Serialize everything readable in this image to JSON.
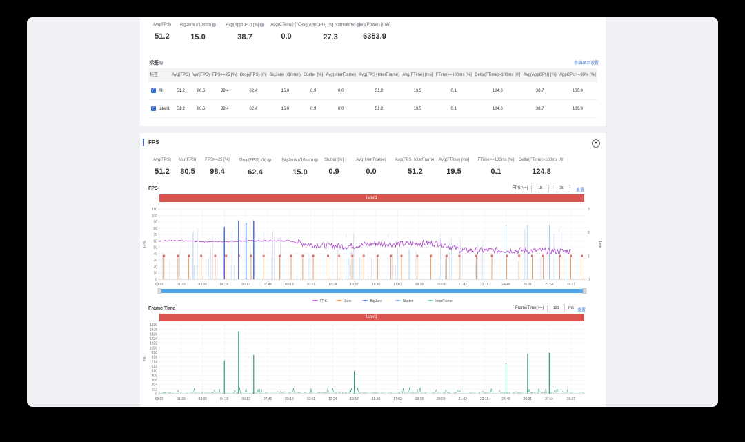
{
  "top_metrics": [
    {
      "label": "Avg(FPS)",
      "value": "51.2",
      "help": false
    },
    {
      "label": "BigJank (/10min)",
      "value": "15.0",
      "help": true
    },
    {
      "label": "Avg(AppCPU) [%]",
      "value": "38.7",
      "help": true
    },
    {
      "label": "Avg(CTemp) [℃]",
      "value": "0.0",
      "help": false
    },
    {
      "label": "Avg(AppCPU) [%] Normalized",
      "value": "27.3",
      "help": true
    },
    {
      "label": "Avg(Power) [mW]",
      "value": "6353.9",
      "help": false
    }
  ],
  "labels_section": {
    "title": "标签",
    "settings_link": "参数显示设置"
  },
  "label_table": {
    "headers": [
      "标签",
      "Avg(FPS)",
      "Var(FPS)",
      "FPS>=25 [%]",
      "Drop(FPS) [/h]",
      "BigJank (/10min)",
      "Stutter [%]",
      "Avg(InterFrame)",
      "Avg(FPS+InterFrame)",
      "Avg(FTime) [ms]",
      "FTime>=100ms [%]",
      "Delta(FTime)>100ms [/h]",
      "Avg(AppCPU) [%]",
      "AppCPU>=60% [%]"
    ],
    "rows": [
      {
        "label": "All",
        "values": [
          "51.2",
          "80.5",
          "98.4",
          "62.4",
          "15.0",
          "0.9",
          "0.0",
          "51.2",
          "19.5",
          "0.1",
          "124.8",
          "38.7",
          "100.0"
        ]
      },
      {
        "label": "label1",
        "values": [
          "51.2",
          "80.5",
          "98.4",
          "62.4",
          "15.0",
          "0.9",
          "0.0",
          "51.2",
          "19.5",
          "0.1",
          "124.8",
          "38.7",
          "100.0"
        ]
      }
    ]
  },
  "fps_section": {
    "title": "FPS",
    "metrics": [
      {
        "label": "Avg(FPS)",
        "value": "51.2",
        "help": false
      },
      {
        "label": "Var(FPS)",
        "value": "80.5",
        "help": false
      },
      {
        "label": "FPS>=25 [%]",
        "value": "98.4",
        "help": false
      },
      {
        "label": "Drop(FPS) [/h]",
        "value": "62.4",
        "help": true
      },
      {
        "label": "BigJank (/10min)",
        "value": "15.0",
        "help": true
      },
      {
        "label": "Stutter [%]",
        "value": "0.9",
        "help": false
      },
      {
        "label": "Avg(InterFrame)",
        "value": "0.0",
        "help": false
      },
      {
        "label": "Avg(FPS+InterFrame)",
        "value": "51.2",
        "help": false
      },
      {
        "label": "Avg(FTime) [ms]",
        "value": "19.5",
        "help": false
      },
      {
        "label": "FTime>=100ms [%]",
        "value": "0.1",
        "help": false
      },
      {
        "label": "Delta(FTime)>100ms [/h]",
        "value": "124.8",
        "help": false
      }
    ]
  },
  "fps_chart": {
    "title": "FPS",
    "threshold_label": "FPS(>=)",
    "threshold_values": [
      "18",
      "25"
    ],
    "reset_label": "重置",
    "banner": "label1",
    "ylabel_left": "FPS",
    "ylabel_right": "Jank",
    "legend": [
      "FPS",
      "Jank",
      "BigJank",
      "Stutter",
      "InterFrame"
    ],
    "colors": {
      "fps": "#a63fc4",
      "jank": "#f08a3c",
      "bigjank": "#4a6fd6",
      "stutter": "#7fb0e8",
      "interframe": "#5cc0b0"
    }
  },
  "frametime_chart": {
    "title": "Frame Time",
    "threshold_label": "FrameTime(>=)",
    "threshold_value": "100",
    "unit": "ms",
    "reset_label": "重置",
    "banner": "label1",
    "ylabel": "ms",
    "color": "#2e9e6b"
  },
  "chart_data": [
    {
      "type": "line",
      "title": "FPS",
      "x_ticks": [
        "00:00",
        "01:33",
        "03:06",
        "04:39",
        "06:12",
        "07:45",
        "09:18",
        "10:51",
        "12:24",
        "13:57",
        "15:30",
        "17:03",
        "18:36",
        "20:09",
        "21:42",
        "23:15",
        "24:48",
        "26:21",
        "27:54",
        "29:27"
      ],
      "y_left_ticks": [
        "0",
        "10",
        "20",
        "30",
        "40",
        "50",
        "60",
        "70",
        "80",
        "90",
        "100",
        "110"
      ],
      "y_right_ticks": [
        "0",
        "1",
        "2",
        "3"
      ],
      "ylim_left": [
        0,
        110
      ],
      "ylim_right": [
        0,
        3
      ],
      "series": [
        {
          "name": "FPS",
          "x": [
            "00:00",
            "01:33",
            "03:06",
            "04:39",
            "06:12",
            "07:45",
            "09:18",
            "10:51",
            "12:24",
            "13:57",
            "15:30",
            "17:03",
            "18:36",
            "20:09",
            "21:42",
            "23:15",
            "24:48",
            "26:21",
            "27:54",
            "29:27"
          ],
          "values": [
            60,
            60,
            59,
            59,
            60,
            60,
            60,
            54,
            52,
            52,
            56,
            55,
            56,
            56,
            45,
            45,
            45,
            45,
            44,
            44
          ]
        },
        {
          "name": "BigJank",
          "x": [
            "04:39",
            "05:40",
            "06:12",
            "06:45"
          ],
          "values": [
            82,
            92,
            88,
            92
          ]
        }
      ],
      "grid": true,
      "legend_position": "bottom"
    },
    {
      "type": "line",
      "title": "Frame Time",
      "x_ticks": [
        "00:00",
        "01:33",
        "03:06",
        "04:39",
        "06:12",
        "07:45",
        "09:18",
        "10:51",
        "12:24",
        "13:57",
        "15:30",
        "17:03",
        "18:36",
        "20:09",
        "21:42",
        "23:15",
        "24:48",
        "26:21",
        "27:54",
        "29:27"
      ],
      "y_ticks": [
        "0",
        "102",
        "204",
        "306",
        "408",
        "510",
        "612",
        "714",
        "816",
        "918",
        "1020",
        "1122",
        "1224",
        "1326",
        "1428",
        "1530"
      ],
      "ylim": [
        0,
        1530
      ],
      "series": [
        {
          "name": "Frame Time",
          "x": [
            "04:39",
            "05:40",
            "06:45",
            "13:57",
            "24:48",
            "26:21",
            "27:54"
          ],
          "values": [
            740,
            1380,
            860,
            500,
            670,
            880,
            910
          ]
        }
      ],
      "grid": true
    }
  ]
}
